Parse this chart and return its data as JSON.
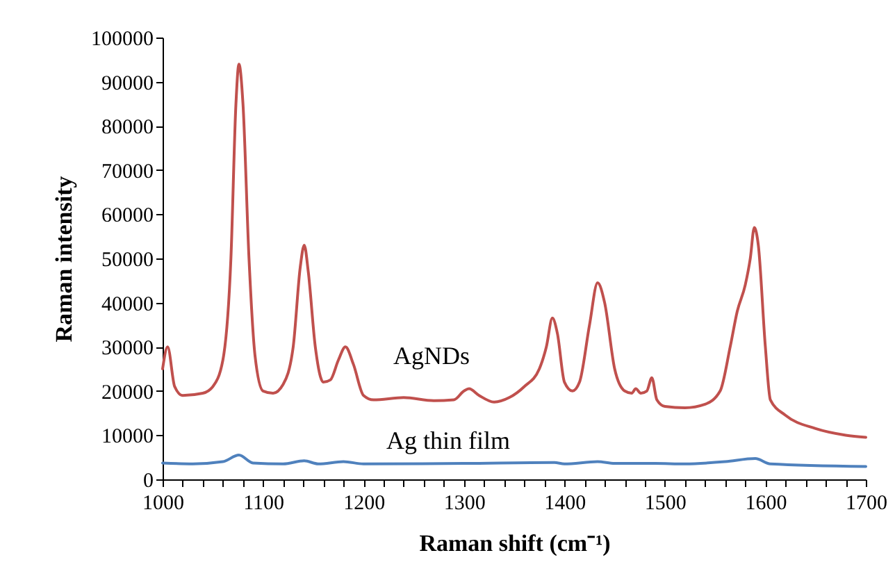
{
  "chart_data": {
    "type": "line",
    "xlabel": "Raman shift (cm⁻¹)",
    "ylabel": "Raman intensity",
    "xlim": [
      1000,
      1700
    ],
    "ylim": [
      0,
      100000
    ],
    "xticks": [
      1000,
      {
        "value": 1020,
        "label": null
      },
      {
        "value": 1040,
        "label": null
      },
      {
        "value": 1060,
        "label": null
      },
      {
        "value": 1080,
        "label": null
      },
      1100,
      {
        "value": 1120,
        "label": null
      },
      {
        "value": 1140,
        "label": null
      },
      {
        "value": 1160,
        "label": null
      },
      {
        "value": 1180,
        "label": null
      },
      1200,
      {
        "value": 1220,
        "label": null
      },
      {
        "value": 1240,
        "label": null
      },
      {
        "value": 1260,
        "label": null
      },
      {
        "value": 1280,
        "label": null
      },
      1300,
      {
        "value": 1320,
        "label": null
      },
      {
        "value": 1340,
        "label": null
      },
      {
        "value": 1360,
        "label": null
      },
      {
        "value": 1380,
        "label": null
      },
      1400,
      {
        "value": 1420,
        "label": null
      },
      {
        "value": 1440,
        "label": null
      },
      {
        "value": 1460,
        "label": null
      },
      {
        "value": 1480,
        "label": null
      },
      1500,
      {
        "value": 1520,
        "label": null
      },
      {
        "value": 1540,
        "label": null
      },
      {
        "value": 1560,
        "label": null
      },
      {
        "value": 1580,
        "label": null
      },
      1600,
      {
        "value": 1620,
        "label": null
      },
      {
        "value": 1640,
        "label": null
      },
      {
        "value": 1660,
        "label": null
      },
      {
        "value": 1680,
        "label": null
      },
      1700
    ],
    "yticks": [
      0,
      10000,
      20000,
      30000,
      40000,
      50000,
      60000,
      70000,
      80000,
      90000,
      100000
    ],
    "grid": false,
    "legend": false,
    "marker": "none",
    "line_style": "solid",
    "series": [
      {
        "name": "AgNDs",
        "color": "#c0504d",
        "x": [
          1000,
          1005,
          1012,
          1020,
          1040,
          1050,
          1060,
          1068,
          1073,
          1076,
          1080,
          1086,
          1092,
          1100,
          1110,
          1120,
          1130,
          1137,
          1141,
          1145,
          1152,
          1160,
          1167,
          1175,
          1182,
          1190,
          1200,
          1210,
          1240,
          1270,
          1290,
          1300,
          1305,
          1315,
          1330,
          1345,
          1360,
          1375,
          1382,
          1388,
          1393,
          1400,
          1408,
          1415,
          1425,
          1433,
          1440,
          1450,
          1460,
          1467,
          1471,
          1476,
          1482,
          1487,
          1492,
          1500,
          1520,
          1540,
          1555,
          1565,
          1572,
          1580,
          1585,
          1589,
          1593,
          1600,
          1605,
          1620,
          1650,
          1680,
          1700
        ],
        "values": [
          25000,
          30000,
          21000,
          19000,
          19500,
          21000,
          27000,
          50000,
          85000,
          94000,
          85000,
          50000,
          28000,
          20000,
          19500,
          21500,
          30000,
          48000,
          53000,
          47000,
          30000,
          22000,
          22500,
          27000,
          30000,
          26000,
          19000,
          18000,
          18500,
          17800,
          18000,
          20000,
          20500,
          19000,
          17500,
          18500,
          21000,
          25000,
          30000,
          36500,
          33000,
          22000,
          20000,
          22000,
          35000,
          44500,
          40000,
          25000,
          20000,
          19500,
          20500,
          19500,
          20000,
          23000,
          18000,
          16500,
          16200,
          17000,
          20000,
          30000,
          38000,
          44000,
          50000,
          57000,
          53000,
          30000,
          18000,
          14500,
          11500,
          10000,
          9500
        ]
      },
      {
        "name": "Ag thin film",
        "color": "#4f81bd",
        "x": [
          1000,
          1030,
          1060,
          1076,
          1090,
          1120,
          1141,
          1155,
          1180,
          1200,
          1300,
          1390,
          1400,
          1433,
          1450,
          1490,
          1520,
          1560,
          1590,
          1605,
          1700
        ],
        "values": [
          3700,
          3500,
          4000,
          5500,
          3700,
          3500,
          4200,
          3500,
          4000,
          3500,
          3600,
          3800,
          3500,
          4000,
          3600,
          3600,
          3500,
          4000,
          4700,
          3500,
          2900
        ]
      }
    ]
  }
}
